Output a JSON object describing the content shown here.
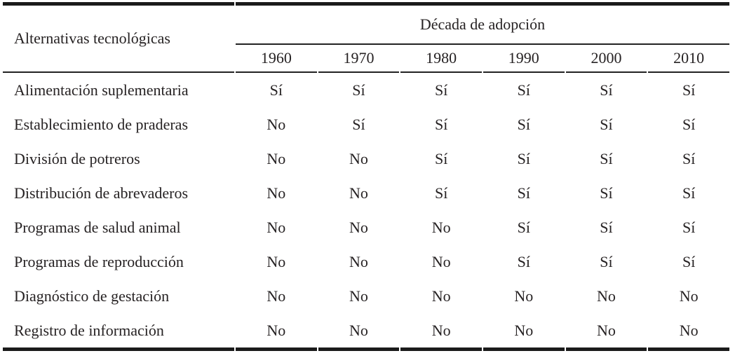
{
  "table": {
    "corner_header": "Alternativas tecnológicas",
    "group_header": "Década de adopción",
    "decades": [
      "1960",
      "1970",
      "1980",
      "1990",
      "2000",
      "2010"
    ],
    "rows": [
      {
        "label": "Alimentación suplementaria",
        "values": [
          "Sí",
          "Sí",
          "Sí",
          "Sí",
          "Sí",
          "Sí"
        ]
      },
      {
        "label": "Establecimiento de praderas",
        "values": [
          "No",
          "Sí",
          "Sí",
          "Sí",
          "Sí",
          "Sí"
        ]
      },
      {
        "label": "División de potreros",
        "values": [
          "No",
          "No",
          "Sí",
          "Sí",
          "Sí",
          "Sí"
        ]
      },
      {
        "label": "Distribución de abrevaderos",
        "values": [
          "No",
          "No",
          "Sí",
          "Sí",
          "Sí",
          "Sí"
        ]
      },
      {
        "label": "Programas de salud animal",
        "values": [
          "No",
          "No",
          "No",
          "Sí",
          "Sí",
          "Sí"
        ]
      },
      {
        "label": "Programas de reproducción",
        "values": [
          "No",
          "No",
          "No",
          "Sí",
          "Sí",
          "Sí"
        ]
      },
      {
        "label": "Diagnóstico de gestación",
        "values": [
          "No",
          "No",
          "No",
          "No",
          "No",
          "No"
        ]
      },
      {
        "label": "Registro de información",
        "values": [
          "No",
          "No",
          "No",
          "No",
          "No",
          "No"
        ]
      }
    ],
    "colors": {
      "rule_thick": "#1b1b1b",
      "rule_thin": "#222222",
      "text": "#262223",
      "background": "#ffffff"
    }
  },
  "chart_data": {
    "type": "table",
    "title": "",
    "row_header_label": "Alternativas tecnológicas",
    "column_group_label": "Década de adopción",
    "columns": [
      "1960",
      "1970",
      "1980",
      "1990",
      "2000",
      "2010"
    ],
    "rows": [
      [
        "Alimentación suplementaria",
        "Sí",
        "Sí",
        "Sí",
        "Sí",
        "Sí",
        "Sí"
      ],
      [
        "Establecimiento de praderas",
        "No",
        "Sí",
        "Sí",
        "Sí",
        "Sí",
        "Sí"
      ],
      [
        "División de potreros",
        "No",
        "No",
        "Sí",
        "Sí",
        "Sí",
        "Sí"
      ],
      [
        "Distribución de abrevaderos",
        "No",
        "No",
        "Sí",
        "Sí",
        "Sí",
        "Sí"
      ],
      [
        "Programas de salud animal",
        "No",
        "No",
        "No",
        "Sí",
        "Sí",
        "Sí"
      ],
      [
        "Programas de reproducción",
        "No",
        "No",
        "No",
        "Sí",
        "Sí",
        "Sí"
      ],
      [
        "Diagnóstico de gestación",
        "No",
        "No",
        "No",
        "No",
        "No",
        "No"
      ],
      [
        "Registro de información",
        "No",
        "No",
        "No",
        "No",
        "No",
        "No"
      ]
    ]
  }
}
